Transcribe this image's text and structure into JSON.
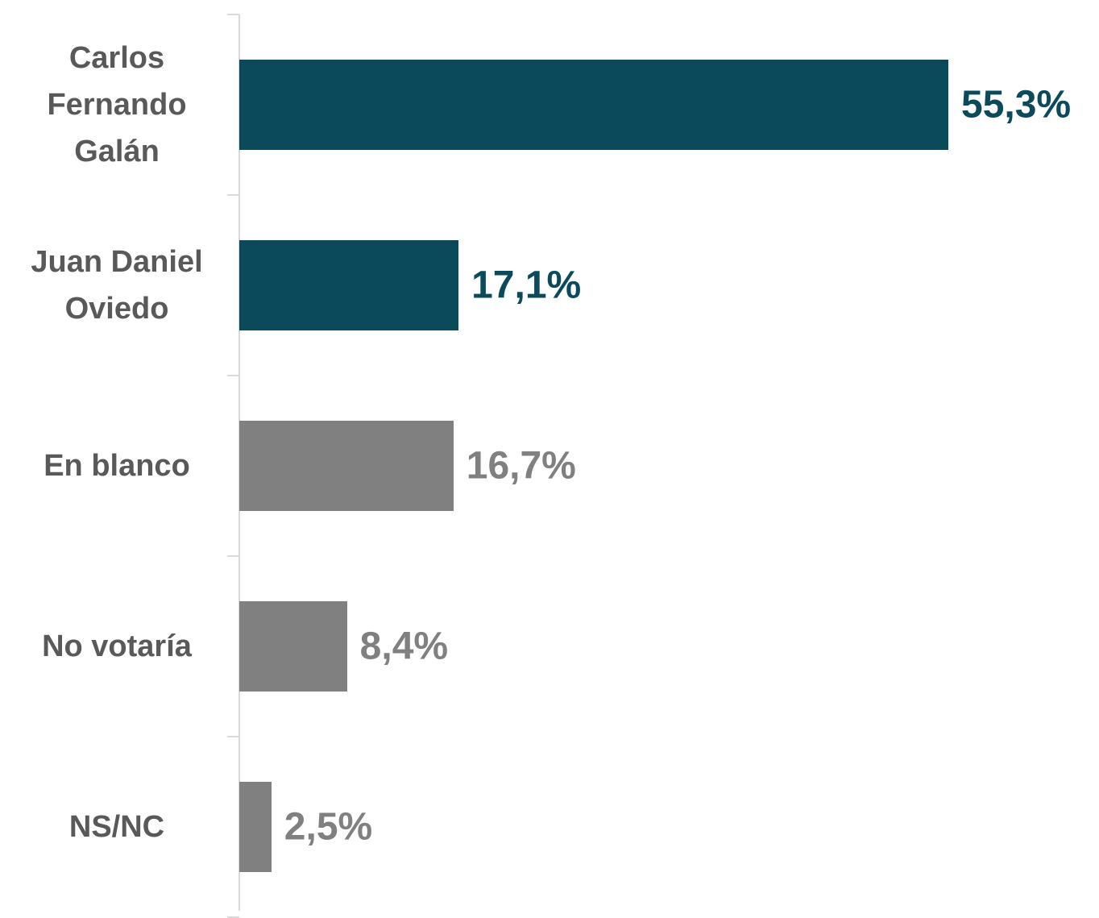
{
  "chart_data": {
    "type": "bar",
    "orientation": "horizontal",
    "categories": [
      "Carlos Fernando Galán",
      "Juan Daniel Oviedo",
      "En blanco",
      "No votaría",
      "NS/NC"
    ],
    "values": [
      55.3,
      17.1,
      16.7,
      8.4,
      2.5
    ],
    "value_labels": [
      "55,3%",
      "17,1%",
      "16,7%",
      "8,4%",
      "2,5%"
    ],
    "colors": [
      "#0a4a5a",
      "#0a4a5a",
      "#808080",
      "#808080",
      "#808080"
    ]
  }
}
